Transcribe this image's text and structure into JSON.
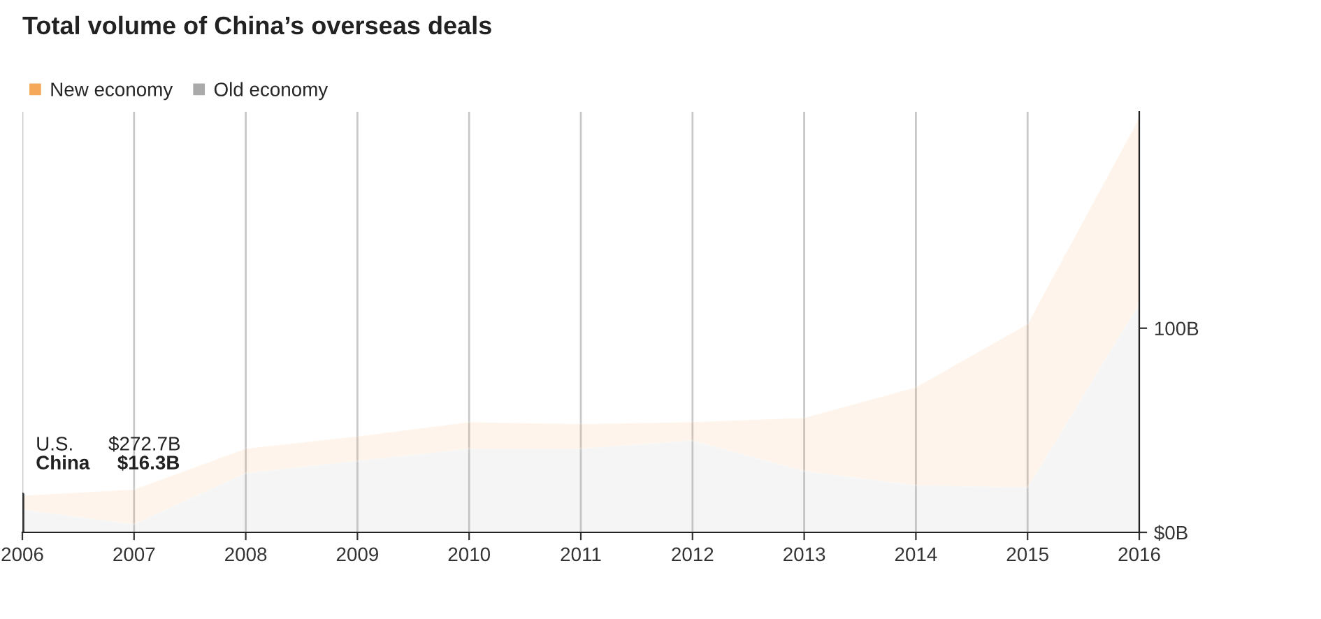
{
  "chart_data": {
    "type": "area",
    "title": "Total volume of China’s overseas deals",
    "stacked": true,
    "x": [
      2006,
      2007,
      2008,
      2009,
      2010,
      2011,
      2012,
      2013,
      2014,
      2015,
      2016
    ],
    "series": [
      {
        "name": "Old economy",
        "color": "#aaaaaa",
        "values": [
          11,
          4,
          29,
          35,
          41,
          41,
          45,
          30,
          23,
          22,
          112
        ]
      },
      {
        "name": "New economy",
        "color": "#f5a85a",
        "values": [
          7,
          17,
          12,
          12,
          13,
          12,
          9,
          26,
          48,
          80,
          91
        ]
      }
    ],
    "xlim": [
      2006,
      2016
    ],
    "xticks": [
      2006,
      2007,
      2008,
      2009,
      2010,
      2011,
      2012,
      2013,
      2014,
      2015,
      2016
    ],
    "ylim": [
      0,
      206
    ],
    "yticks": [
      {
        "value": 0,
        "label": "$0B"
      },
      {
        "value": 100,
        "label": "100B"
      }
    ],
    "grid": "x",
    "legend": "top left",
    "annotations": [
      "U.S.",
      "$272.7B",
      "China",
      "$16.3B"
    ],
    "ref_lines": [
      {
        "axis": "x",
        "value": 2006,
        "label": null,
        "color": "#333333"
      }
    ]
  }
}
